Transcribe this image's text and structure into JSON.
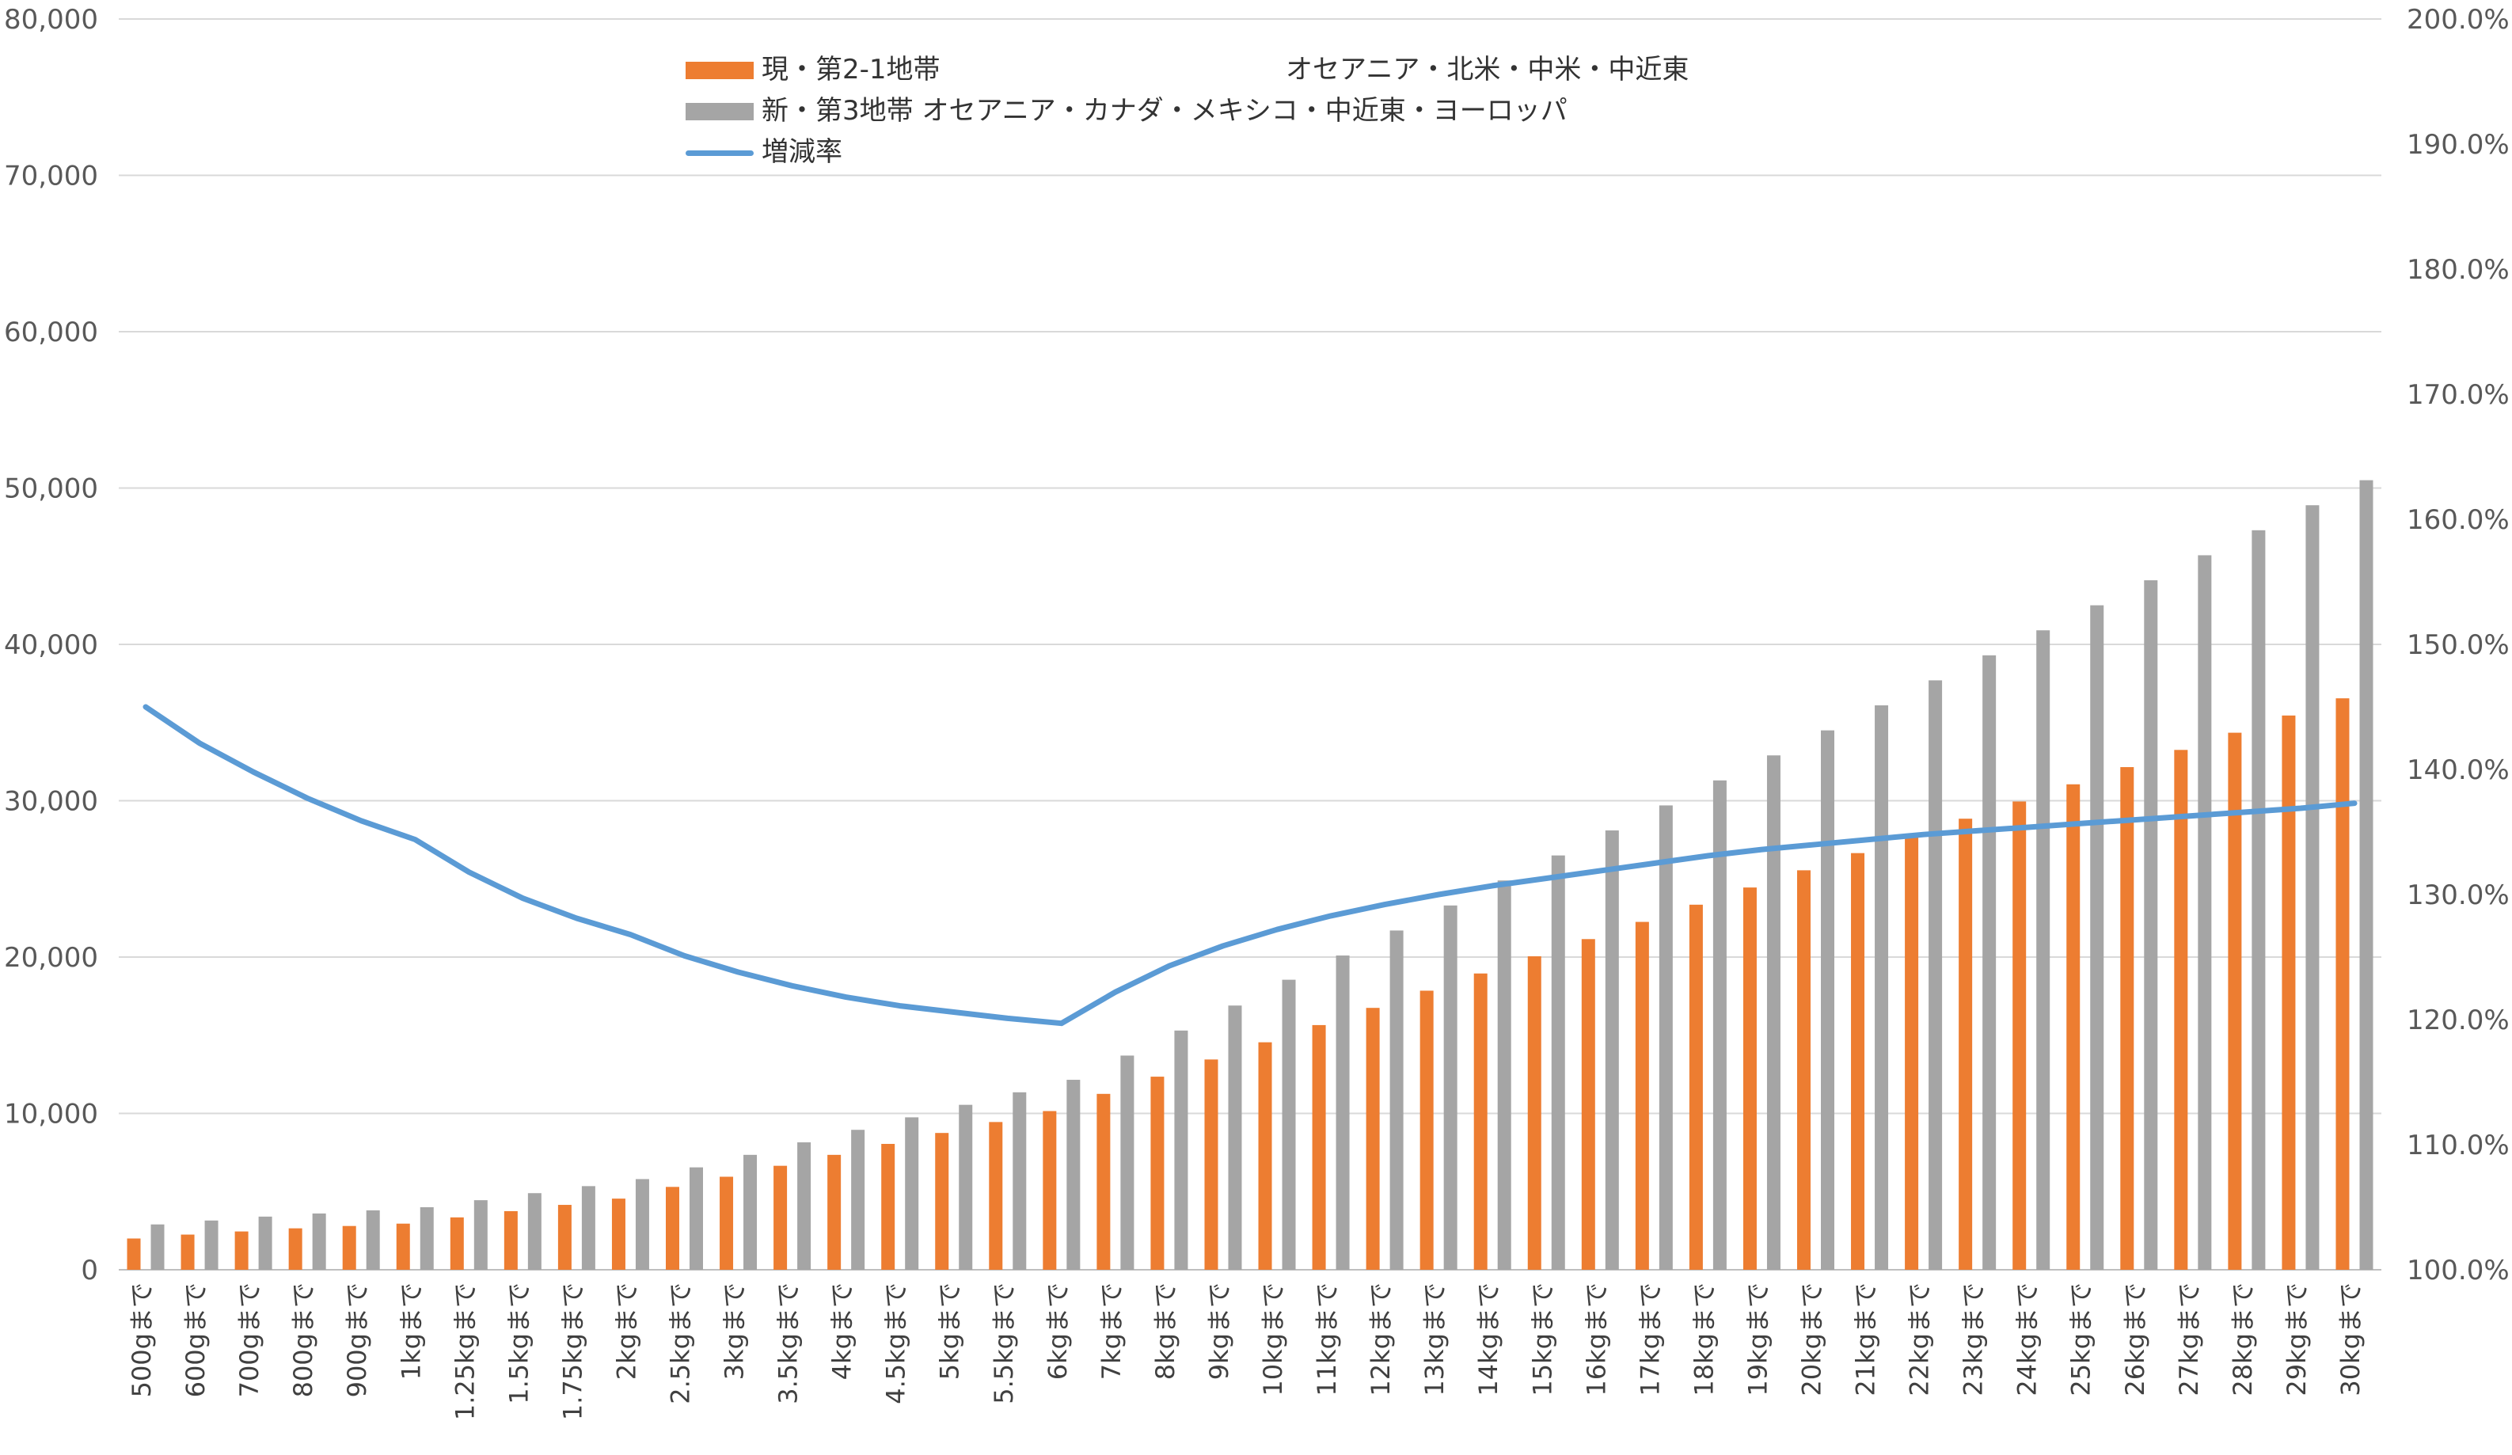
{
  "chart_data": {
    "type": "bar",
    "categories": [
      "500gまで",
      "600gまで",
      "700gまで",
      "800gまで",
      "900gまで",
      "1kgまで",
      "1.25kgまで",
      "1.5kgまで",
      "1.75kgまで",
      "2kgまで",
      "2.5kgまで",
      "3kgまで",
      "3.5kgまで",
      "4kgまで",
      "4.5kgまで",
      "5kgまで",
      "5.5kgまで",
      "6kgまで",
      "7kgまで",
      "8kgまで",
      "9kgまで",
      "10kgまで",
      "11kgまで",
      "12kgまで",
      "13kgまで",
      "14kgまで",
      "15kgまで",
      "16kgまで",
      "17kgまで",
      "18kgまで",
      "19kgまで",
      "20kgまで",
      "21kgまで",
      "22kgまで",
      "23kgまで",
      "24kgまで",
      "25kgまで",
      "26kgまで",
      "27kgまで",
      "28kgまで",
      "29kgまで",
      "30kgまで"
    ],
    "series": [
      {
        "name": "現・第2-1地帯",
        "name_suffix": "オセアニア・北米・中米・中近東",
        "kind": "bar",
        "axis": "left",
        "color": "#ED7D31",
        "values": [
          2000,
          2250,
          2450,
          2650,
          2800,
          2950,
          3350,
          3750,
          4150,
          4550,
          5300,
          5950,
          6650,
          7350,
          8050,
          8750,
          9450,
          10150,
          11250,
          12350,
          13450,
          14550,
          15650,
          16750,
          17850,
          18950,
          20050,
          21150,
          22250,
          23350,
          24450,
          25550,
          26650,
          27750,
          28850,
          29950,
          31050,
          32150,
          33250,
          34350,
          35450,
          36550
        ]
      },
      {
        "name": "新・第3地帯 オセアニア・カナダ・メキシコ・中近東・ヨーロッパ",
        "kind": "bar",
        "axis": "left",
        "color": "#A5A5A5",
        "values": [
          2900,
          3150,
          3400,
          3600,
          3800,
          4000,
          4450,
          4900,
          5350,
          5800,
          6550,
          7350,
          8150,
          8950,
          9750,
          10550,
          11350,
          12150,
          13700,
          15300,
          16900,
          18550,
          20100,
          21700,
          23300,
          24900,
          26500,
          28100,
          29700,
          31300,
          32900,
          34500,
          36100,
          37700,
          39300,
          40900,
          42500,
          44100,
          45700,
          47300,
          48900,
          50500
        ]
      },
      {
        "name": "増減率",
        "kind": "line",
        "axis": "right",
        "color": "#5B9BD5",
        "values": [
          145.0,
          142.1,
          139.8,
          137.7,
          135.9,
          134.4,
          131.8,
          129.7,
          128.1,
          126.8,
          125.1,
          123.8,
          122.7,
          121.8,
          121.1,
          120.6,
          120.1,
          119.7,
          122.2,
          124.3,
          125.9,
          127.2,
          128.3,
          129.2,
          130.0,
          130.7,
          131.3,
          131.9,
          132.5,
          133.1,
          133.6,
          134.0,
          134.4,
          134.8,
          135.1,
          135.4,
          135.7,
          136.0,
          136.3,
          136.6,
          136.9,
          137.3
        ]
      }
    ],
    "y_left": {
      "min": 0,
      "max": 80000,
      "ticks": [
        "0",
        "10,000",
        "20,000",
        "30,000",
        "40,000",
        "50,000",
        "60,000",
        "70,000",
        "80,000"
      ]
    },
    "y_right": {
      "min": 100,
      "max": 200,
      "ticks": [
        "100.0%",
        "110.0%",
        "120.0%",
        "130.0%",
        "140.0%",
        "150.0%",
        "160.0%",
        "170.0%",
        "180.0%",
        "190.0%",
        "200.0%"
      ]
    },
    "title": "",
    "xlabel": "",
    "ylabel": "",
    "grid": true,
    "legend_position": "top-center"
  }
}
